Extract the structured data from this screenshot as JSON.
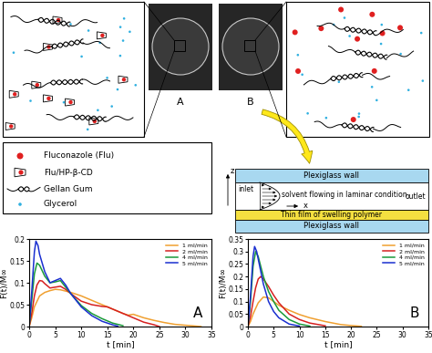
{
  "photo_labels": [
    "A",
    "B"
  ],
  "key": {
    "items": [
      "Fluconazole (Flu)",
      "Flu/HP-β-CD",
      "Gellan Gum",
      "Glycerol"
    ]
  },
  "flow_cell": {
    "z_axis": "z",
    "x_axis": "x",
    "top_wall": "Plexiglass wall",
    "bottom_wall": "Plexiglass wall",
    "inlet": "inlet",
    "outlet": "outlet",
    "flow": "solvent flowing in laminar condition",
    "film": "Thin film of swelling polymer"
  },
  "chart_data": [
    {
      "type": "line",
      "x_label": "t [min]",
      "y_label": "F(t)/M∞",
      "annotations": [
        "A"
      ],
      "xlim": [
        0,
        35
      ],
      "xticks": [
        0,
        5,
        10,
        15,
        20,
        25,
        30,
        35
      ],
      "ylim": [
        0,
        0.2
      ],
      "yticks": [
        0,
        0.05,
        0.1,
        0.15,
        0.2
      ],
      "grid": false,
      "legend": "upper right",
      "series": [
        {
          "name": "1 ml/min",
          "color": "#f0a030",
          "x": [
            0,
            0.5,
            1,
            2,
            3,
            4,
            5,
            6,
            8,
            10,
            12,
            14,
            16,
            18,
            19,
            20,
            21,
            22,
            24,
            26,
            28,
            30,
            32,
            33
          ],
          "values": [
            0,
            0.02,
            0.045,
            0.07,
            0.078,
            0.082,
            0.085,
            0.084,
            0.078,
            0.07,
            0.06,
            0.05,
            0.04,
            0.03,
            0.026,
            0.028,
            0.024,
            0.02,
            0.014,
            0.009,
            0.005,
            0.003,
            0.001,
            0
          ]
        },
        {
          "name": "2 ml/min",
          "color": "#d62020",
          "x": [
            0,
            0.5,
            1,
            1.5,
            2,
            2.5,
            3,
            4,
            5,
            6,
            7,
            8,
            10,
            12,
            14,
            15,
            16,
            18,
            20,
            22,
            24,
            25
          ],
          "values": [
            0,
            0.03,
            0.07,
            0.095,
            0.105,
            0.104,
            0.098,
            0.088,
            0.09,
            0.092,
            0.085,
            0.075,
            0.058,
            0.05,
            0.046,
            0.045,
            0.04,
            0.03,
            0.02,
            0.01,
            0.004,
            0
          ]
        },
        {
          "name": "4 ml/min",
          "color": "#1a9a3a",
          "x": [
            0,
            0.5,
            1,
            1.5,
            2,
            3,
            4,
            5,
            6,
            7,
            8,
            10,
            12,
            14,
            16,
            18
          ],
          "values": [
            0,
            0.06,
            0.12,
            0.145,
            0.14,
            0.115,
            0.1,
            0.102,
            0.105,
            0.09,
            0.075,
            0.048,
            0.03,
            0.018,
            0.008,
            0.002
          ]
        },
        {
          "name": "5 ml/min",
          "color": "#1a2fd0",
          "x": [
            0,
            0.5,
            1,
            1.3,
            1.7,
            2,
            3,
            4,
            5,
            6,
            7,
            8,
            10,
            12,
            14,
            16,
            17
          ],
          "values": [
            0,
            0.08,
            0.17,
            0.195,
            0.185,
            0.165,
            0.125,
            0.1,
            0.105,
            0.11,
            0.095,
            0.075,
            0.045,
            0.025,
            0.012,
            0.004,
            0.001
          ]
        }
      ]
    },
    {
      "type": "line",
      "x_label": "t [min]",
      "y_label": "F(t)/M∞",
      "annotations": [
        "B"
      ],
      "xlim": [
        0,
        35
      ],
      "xticks": [
        0,
        5,
        10,
        15,
        20,
        25,
        30,
        35
      ],
      "ylim": [
        0,
        0.35
      ],
      "yticks": [
        0,
        0.05,
        0.1,
        0.15,
        0.2,
        0.25,
        0.3,
        0.35
      ],
      "grid": false,
      "legend": "upper right",
      "series": [
        {
          "name": "1 ml/min",
          "color": "#f0a030",
          "x": [
            0,
            0.5,
            1,
            2,
            3,
            4,
            5,
            6,
            8,
            10,
            12,
            15,
            18,
            20,
            22
          ],
          "values": [
            0,
            0.02,
            0.05,
            0.095,
            0.118,
            0.115,
            0.1,
            0.085,
            0.065,
            0.048,
            0.035,
            0.02,
            0.008,
            0.004,
            0.001
          ]
        },
        {
          "name": "2 ml/min",
          "color": "#d62020",
          "x": [
            0,
            0.5,
            1,
            1.5,
            2,
            2.5,
            3,
            4,
            5,
            6,
            8,
            10,
            12,
            15
          ],
          "values": [
            0,
            0.04,
            0.1,
            0.155,
            0.19,
            0.2,
            0.19,
            0.16,
            0.125,
            0.095,
            0.05,
            0.028,
            0.014,
            0.003
          ]
        },
        {
          "name": "4 ml/min",
          "color": "#1a9a3a",
          "x": [
            0,
            0.5,
            1,
            1.5,
            2,
            3,
            4,
            5,
            6,
            8,
            10,
            12
          ],
          "values": [
            0,
            0.1,
            0.24,
            0.3,
            0.28,
            0.2,
            0.14,
            0.1,
            0.065,
            0.028,
            0.01,
            0.002
          ]
        },
        {
          "name": "5 ml/min",
          "color": "#1a2fd0",
          "x": [
            0,
            0.5,
            1,
            1.3,
            1.7,
            2,
            3,
            4,
            5,
            6,
            8,
            10
          ],
          "values": [
            0,
            0.12,
            0.28,
            0.32,
            0.3,
            0.27,
            0.17,
            0.1,
            0.06,
            0.035,
            0.01,
            0.002
          ]
        }
      ]
    }
  ]
}
